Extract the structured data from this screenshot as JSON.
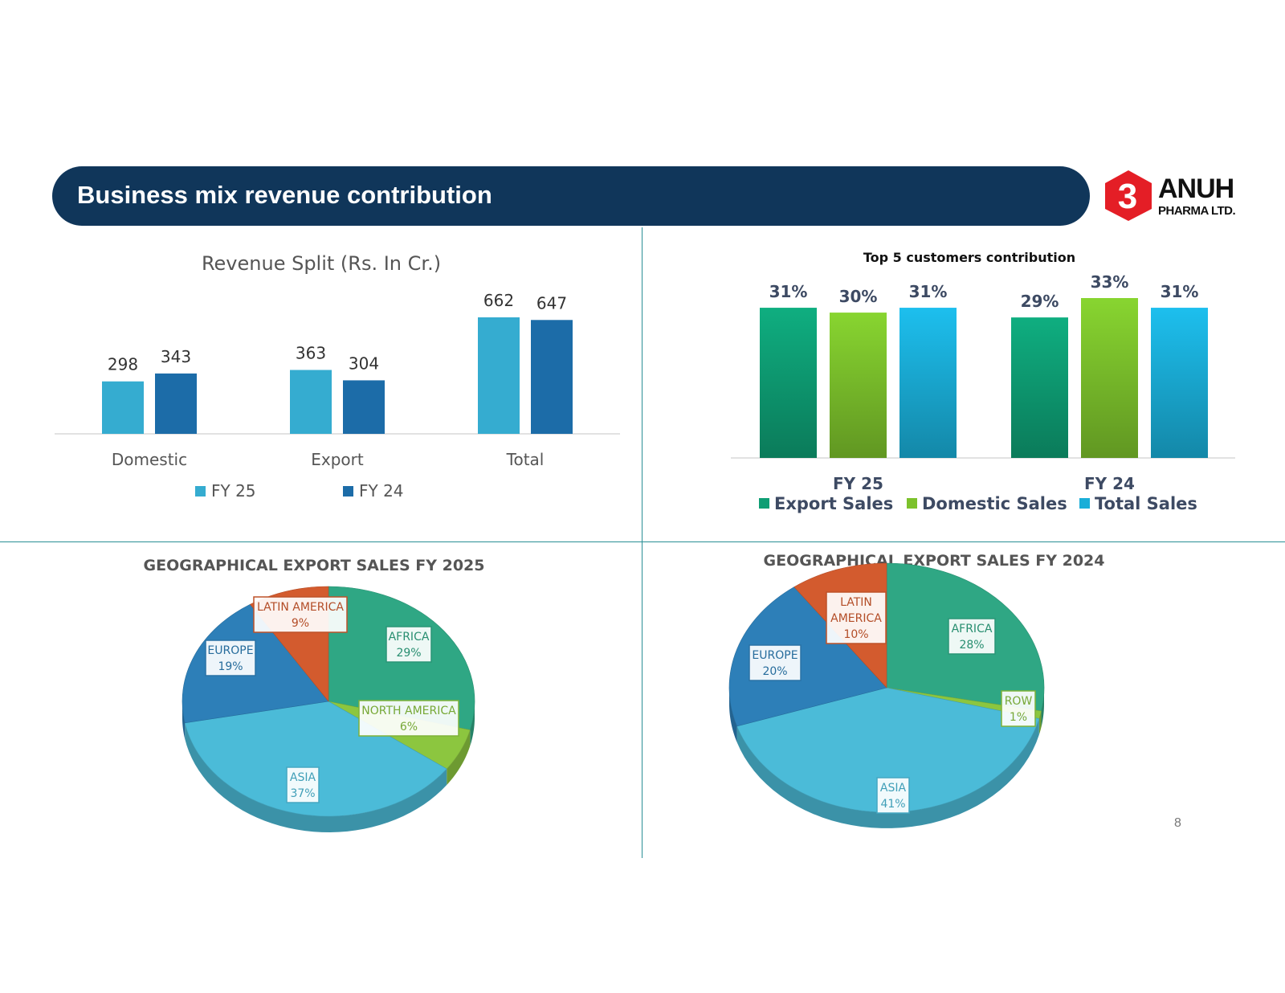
{
  "header": {
    "title": "Business mix revenue contribution"
  },
  "logo": {
    "name": "ANUH",
    "subtitle": "PHARMA LTD."
  },
  "page_number": "8",
  "colors": {
    "header_bg": "#10365a",
    "fy25_bar": "#35acd0",
    "fy24_bar": "#1c6ca8",
    "export_sales": "#0e9e74",
    "domestic_sales": "#7cc22c",
    "total_sales": "#1aaed8",
    "divider": "#2a8f95"
  },
  "chart_data": [
    {
      "type": "bar",
      "title": "Revenue Split  (Rs. In Cr.)",
      "categories": [
        "Domestic",
        "Export",
        "Total"
      ],
      "series": [
        {
          "name": "FY 25",
          "values": [
            298,
            363,
            662
          ],
          "color": "#35acd0"
        },
        {
          "name": "FY 24",
          "values": [
            343,
            304,
            647
          ],
          "color": "#1c6ca8"
        }
      ],
      "ylim": [
        0,
        662
      ],
      "grid": false,
      "legend": "bottom"
    },
    {
      "type": "bar",
      "title": "Top 5 customers contribution",
      "categories": [
        "FY 25",
        "FY 24"
      ],
      "series": [
        {
          "name": "Export Sales",
          "values": [
            31,
            29
          ],
          "labels": [
            "31%",
            "29%"
          ],
          "color": "#0e9e74"
        },
        {
          "name": "Domestic Sales",
          "values": [
            30,
            33
          ],
          "labels": [
            "30%",
            "33%"
          ],
          "color": "#7cc22c"
        },
        {
          "name": "Total Sales",
          "values": [
            31,
            31
          ],
          "labels": [
            "31%",
            "31%"
          ],
          "color": "#1aaed8"
        }
      ],
      "ylim": [
        0,
        33
      ],
      "grid": false,
      "legend": "bottom"
    },
    {
      "type": "pie",
      "title": "GEOGRAPHICAL EXPORT SALES FY 2025",
      "slices": [
        {
          "label": "AFRICA",
          "value": 29,
          "value_label": "29%",
          "color": "#2fa784"
        },
        {
          "label": "NORTH AMERICA",
          "value": 6,
          "value_label": "6%",
          "color": "#8cc63f"
        },
        {
          "label": "ASIA",
          "value": 37,
          "value_label": "37%",
          "color": "#4bbbd8"
        },
        {
          "label": "EUROPE",
          "value": 19,
          "value_label": "19%",
          "color": "#2d7fb8"
        },
        {
          "label": "LATIN AMERICA",
          "value": 9,
          "value_label": "9%",
          "color": "#d35b2e"
        }
      ]
    },
    {
      "type": "pie",
      "title": "GEOGRAPHICAL EXPORT SALES FY 2024",
      "slices": [
        {
          "label": "AFRICA",
          "value": 28,
          "value_label": "28%",
          "color": "#2fa784"
        },
        {
          "label": "ROW",
          "value": 1,
          "value_label": "1%",
          "color": "#8cc63f"
        },
        {
          "label": "ASIA",
          "value": 41,
          "value_label": "41%",
          "color": "#4bbbd8"
        },
        {
          "label": "EUROPE",
          "value": 20,
          "value_label": "20%",
          "color": "#2d7fb8"
        },
        {
          "label": "LATIN AMERICA",
          "label_lines": [
            "LATIN",
            "AMERICA"
          ],
          "value": 10,
          "value_label": "10%",
          "color": "#d35b2e"
        }
      ]
    }
  ]
}
